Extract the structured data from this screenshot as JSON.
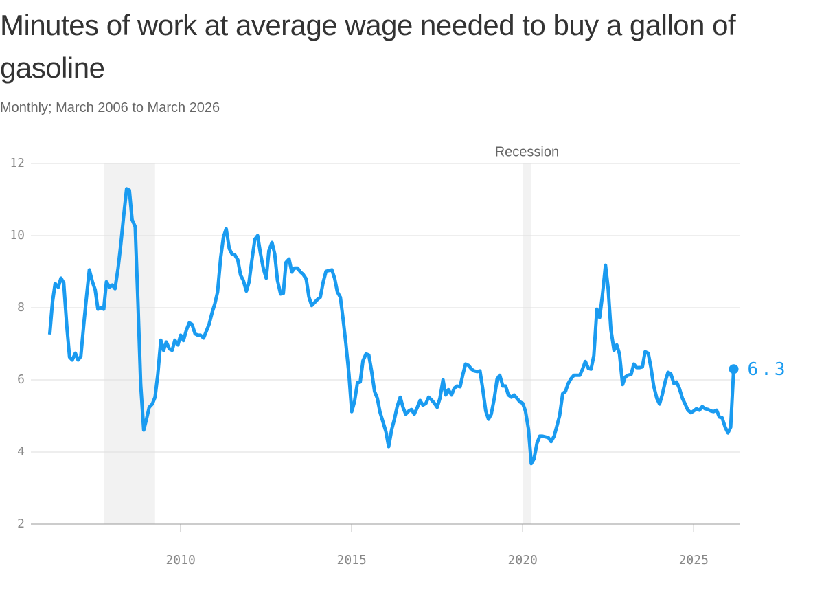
{
  "chart_data": {
    "type": "line",
    "title": "Minutes of work at average wage needed to buy a gallon of gasoline",
    "subtitle": "Monthly; March 2006 to March 2026",
    "annotation": "Recession",
    "recessions": [
      {
        "start": 2007.75,
        "end": 2009.25
      },
      {
        "start": 2020.0,
        "end": 2020.25
      }
    ],
    "recession_color": "#f2f2f2",
    "xlim": [
      2005.48,
      2026.36
    ],
    "xticks": [
      2010,
      2015,
      2020,
      2025
    ],
    "ylim": [
      2,
      12
    ],
    "yticks": [
      2,
      4,
      6,
      8,
      10,
      12
    ],
    "grid": true,
    "x": [
      2006.17,
      2006.25,
      2006.33,
      2006.42,
      2006.5,
      2006.58,
      2006.67,
      2006.75,
      2006.83,
      2006.92,
      2007.0,
      2007.08,
      2007.17,
      2007.25,
      2007.33,
      2007.42,
      2007.5,
      2007.58,
      2007.67,
      2007.75,
      2007.83,
      2007.92,
      2008.0,
      2008.08,
      2008.17,
      2008.25,
      2008.33,
      2008.42,
      2008.5,
      2008.58,
      2008.67,
      2008.75,
      2008.83,
      2008.92,
      2009.0,
      2009.08,
      2009.17,
      2009.25,
      2009.33,
      2009.42,
      2009.5,
      2009.58,
      2009.67,
      2009.75,
      2009.83,
      2009.92,
      2010.0,
      2010.08,
      2010.17,
      2010.25,
      2010.33,
      2010.42,
      2010.5,
      2010.58,
      2010.67,
      2010.75,
      2010.83,
      2010.92,
      2011.0,
      2011.08,
      2011.17,
      2011.25,
      2011.33,
      2011.42,
      2011.5,
      2011.58,
      2011.67,
      2011.75,
      2011.83,
      2011.92,
      2012.0,
      2012.08,
      2012.17,
      2012.25,
      2012.33,
      2012.42,
      2012.5,
      2012.58,
      2012.67,
      2012.75,
      2012.83,
      2012.92,
      2013.0,
      2013.08,
      2013.17,
      2013.25,
      2013.33,
      2013.42,
      2013.5,
      2013.58,
      2013.67,
      2013.75,
      2013.83,
      2013.92,
      2014.0,
      2014.08,
      2014.17,
      2014.25,
      2014.33,
      2014.42,
      2014.5,
      2014.58,
      2014.67,
      2014.75,
      2014.83,
      2014.92,
      2015.0,
      2015.08,
      2015.17,
      2015.25,
      2015.33,
      2015.42,
      2015.5,
      2015.58,
      2015.67,
      2015.75,
      2015.83,
      2015.92,
      2016.0,
      2016.08,
      2016.17,
      2016.25,
      2016.33,
      2016.42,
      2016.5,
      2016.58,
      2016.67,
      2016.75,
      2016.83,
      2016.92,
      2017.0,
      2017.08,
      2017.17,
      2017.25,
      2017.33,
      2017.42,
      2017.5,
      2017.58,
      2017.67,
      2017.75,
      2017.83,
      2017.92,
      2018.0,
      2018.08,
      2018.17,
      2018.25,
      2018.33,
      2018.42,
      2018.5,
      2018.58,
      2018.67,
      2018.75,
      2018.83,
      2018.92,
      2019.0,
      2019.08,
      2019.17,
      2019.25,
      2019.33,
      2019.42,
      2019.5,
      2019.58,
      2019.67,
      2019.75,
      2019.83,
      2019.92,
      2020.0,
      2020.08,
      2020.17,
      2020.25,
      2020.33,
      2020.42,
      2020.5,
      2020.58,
      2020.67,
      2020.75,
      2020.83,
      2020.92,
      2021.0,
      2021.08,
      2021.17,
      2021.25,
      2021.33,
      2021.42,
      2021.5,
      2021.58,
      2021.67,
      2021.75,
      2021.83,
      2021.92,
      2022.0,
      2022.08,
      2022.17,
      2022.25,
      2022.33,
      2022.42,
      2022.5,
      2022.58,
      2022.67,
      2022.75,
      2022.83,
      2022.92,
      2023.0,
      2023.08,
      2023.17,
      2023.25,
      2023.33,
      2023.42,
      2023.5,
      2023.58,
      2023.67,
      2023.75,
      2023.83,
      2023.92,
      2024.0,
      2024.08,
      2024.17,
      2024.25,
      2024.33,
      2024.42,
      2024.5,
      2024.58,
      2024.67,
      2024.75,
      2024.83,
      2024.92,
      2025.0,
      2025.08,
      2025.17,
      2025.25,
      2025.33,
      2025.42,
      2025.5,
      2025.58,
      2025.67,
      2025.75,
      2025.83,
      2025.92,
      2026.0,
      2026.08,
      2026.17
    ],
    "series": [
      {
        "color": "#1a9bf0",
        "values": [
          7.26,
          8.15,
          8.67,
          8.57,
          8.82,
          8.69,
          7.49,
          6.63,
          6.55,
          6.74,
          6.55,
          6.65,
          7.58,
          8.34,
          9.05,
          8.72,
          8.5,
          7.96,
          8.0,
          7.96,
          8.72,
          8.57,
          8.63,
          8.53,
          9.1,
          9.77,
          10.53,
          11.3,
          11.26,
          10.44,
          10.25,
          8.15,
          5.87,
          4.61,
          4.91,
          5.24,
          5.33,
          5.52,
          6.15,
          7.1,
          6.82,
          7.05,
          6.86,
          6.82,
          7.1,
          6.97,
          7.24,
          7.09,
          7.39,
          7.58,
          7.54,
          7.28,
          7.24,
          7.24,
          7.16,
          7.35,
          7.54,
          7.87,
          8.11,
          8.44,
          9.39,
          9.96,
          10.19,
          9.64,
          9.49,
          9.47,
          9.33,
          8.91,
          8.76,
          8.46,
          8.72,
          9.3,
          9.9,
          10.0,
          9.52,
          9.07,
          8.82,
          9.58,
          9.81,
          9.49,
          8.76,
          8.38,
          8.4,
          9.26,
          9.35,
          8.99,
          9.1,
          9.1,
          8.99,
          8.93,
          8.8,
          8.3,
          8.06,
          8.15,
          8.23,
          8.29,
          8.72,
          9.01,
          9.03,
          9.05,
          8.82,
          8.44,
          8.29,
          7.68,
          7.01,
          6.15,
          5.12,
          5.39,
          5.92,
          5.94,
          6.53,
          6.72,
          6.69,
          6.25,
          5.68,
          5.49,
          5.1,
          4.82,
          4.57,
          4.15,
          4.63,
          4.91,
          5.26,
          5.52,
          5.24,
          5.05,
          5.14,
          5.18,
          5.05,
          5.24,
          5.43,
          5.3,
          5.35,
          5.52,
          5.45,
          5.35,
          5.24,
          5.49,
          6.0,
          5.58,
          5.73,
          5.58,
          5.77,
          5.83,
          5.81,
          6.15,
          6.44,
          6.4,
          6.3,
          6.25,
          6.23,
          6.25,
          5.77,
          5.14,
          4.91,
          5.05,
          5.49,
          6.02,
          6.13,
          5.83,
          5.83,
          5.58,
          5.52,
          5.58,
          5.49,
          5.39,
          5.35,
          5.14,
          4.63,
          3.68,
          3.81,
          4.25,
          4.44,
          4.44,
          4.42,
          4.4,
          4.29,
          4.44,
          4.72,
          5.01,
          5.62,
          5.68,
          5.9,
          6.04,
          6.13,
          6.13,
          6.13,
          6.3,
          6.51,
          6.32,
          6.3,
          6.67,
          7.96,
          7.73,
          8.34,
          9.18,
          8.53,
          7.39,
          6.82,
          6.97,
          6.72,
          5.87,
          6.08,
          6.13,
          6.15,
          6.44,
          6.34,
          6.34,
          6.36,
          6.78,
          6.74,
          6.34,
          5.83,
          5.49,
          5.33,
          5.58,
          5.96,
          6.21,
          6.17,
          5.9,
          5.94,
          5.77,
          5.49,
          5.33,
          5.16,
          5.09,
          5.14,
          5.2,
          5.16,
          5.26,
          5.2,
          5.18,
          5.14,
          5.12,
          5.16,
          4.97,
          4.95,
          4.69,
          4.53,
          4.69,
          6.3
        ]
      }
    ]
  }
}
